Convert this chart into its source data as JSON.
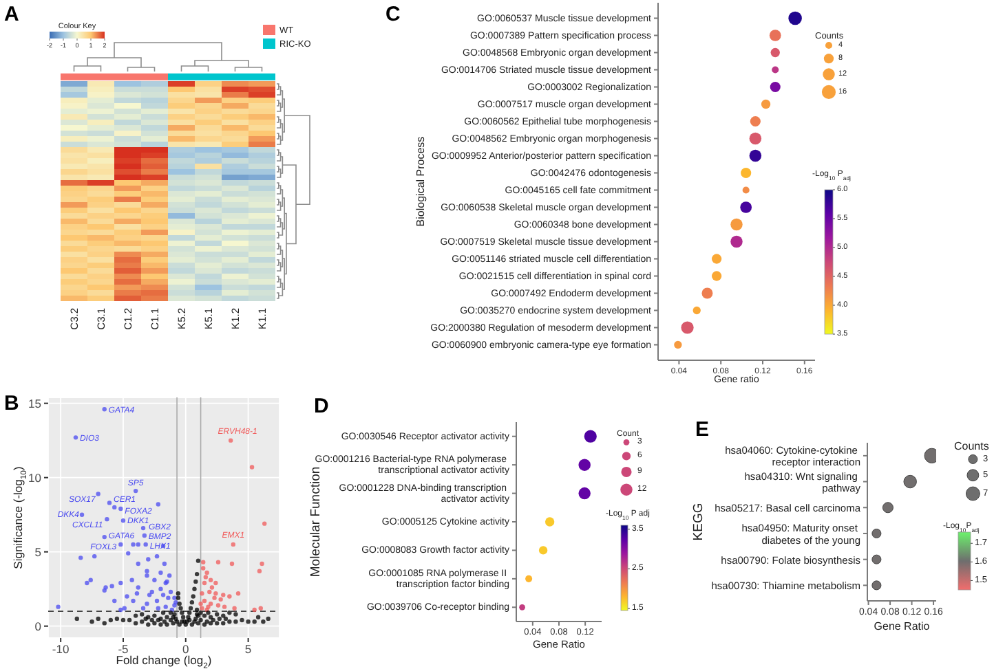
{
  "chart_data": [
    {
      "type": "heatmap",
      "title": "A",
      "categories": [
        "C3.2",
        "C3.1",
        "C1.2",
        "C1.1",
        "K5.2",
        "K5.1",
        "K1.2",
        "K1.1"
      ],
      "y_categories": [
        null,
        null,
        null,
        null,
        null,
        null,
        null,
        null,
        null,
        null,
        null,
        null,
        null,
        null,
        null,
        null,
        null,
        null,
        null,
        null,
        null,
        null,
        null,
        null,
        null,
        null,
        null,
        null,
        null,
        null,
        null,
        null,
        null,
        null,
        null,
        null,
        null,
        null,
        null,
        null
      ],
      "cells": [
        [
          -1.3,
          0.3,
          -1.0,
          -0.8,
          1.9,
          0.8,
          1.4,
          1.3
        ],
        [
          -0.6,
          0.2,
          -0.5,
          -0.5,
          1.0,
          0.5,
          1.9,
          1.8
        ],
        [
          -0.9,
          0.1,
          -0.3,
          -0.4,
          0.5,
          0.4,
          1.5,
          1.9
        ],
        [
          0.2,
          -0.2,
          -0.6,
          -0.7,
          0.7,
          1.3,
          0.8,
          0.9
        ],
        [
          0.1,
          -0.3,
          0.0,
          -0.6,
          0.9,
          0.7,
          1.2,
          0.6
        ],
        [
          -0.2,
          -0.1,
          -0.4,
          -0.2,
          0.4,
          0.8,
          0.6,
          0.7
        ],
        [
          0.3,
          -0.4,
          -0.2,
          -0.5,
          0.8,
          0.6,
          0.9,
          1.1
        ],
        [
          -0.3,
          0.2,
          -0.6,
          -0.3,
          0.5,
          0.9,
          0.5,
          0.8
        ],
        [
          0.0,
          -0.2,
          -0.3,
          -0.6,
          1.2,
          0.6,
          1.1,
          0.6
        ],
        [
          -0.4,
          -0.5,
          0.1,
          -0.4,
          0.6,
          0.5,
          0.7,
          1.0
        ],
        [
          0.2,
          -0.1,
          -0.5,
          -0.2,
          1.1,
          0.7,
          0.6,
          1.3
        ],
        [
          -0.5,
          -0.3,
          -0.4,
          -0.7,
          0.4,
          0.3,
          0.9,
          1.5
        ],
        [
          0.6,
          0.3,
          2.0,
          2.0,
          -0.8,
          -1.0,
          -0.9,
          -0.6
        ],
        [
          0.4,
          0.5,
          2.0,
          1.9,
          -0.9,
          -0.7,
          -1.1,
          -0.8
        ],
        [
          0.5,
          0.2,
          1.9,
          1.6,
          -0.6,
          -0.8,
          -0.5,
          -0.7
        ],
        [
          0.3,
          0.4,
          2.0,
          1.7,
          -0.7,
          0.5,
          -0.8,
          -0.5
        ],
        [
          0.7,
          0.5,
          1.8,
          1.5,
          -1.0,
          -0.6,
          -0.9,
          -0.9
        ],
        [
          0.4,
          0.3,
          2.0,
          1.9,
          -0.5,
          -0.4,
          -1.4,
          -1.3
        ],
        [
          1.6,
          1.9,
          1.0,
          1.2,
          -0.4,
          -0.3,
          -0.6,
          -0.5
        ],
        [
          0.9,
          0.7,
          1.3,
          0.8,
          -0.6,
          -0.5,
          -0.3,
          -0.7
        ],
        [
          0.8,
          0.6,
          0.9,
          1.1,
          -0.3,
          -0.2,
          -0.5,
          -0.4
        ],
        [
          0.7,
          0.9,
          1.5,
          0.9,
          -0.2,
          -0.5,
          -0.2,
          -0.3
        ],
        [
          1.3,
          0.8,
          0.6,
          1.2,
          -0.4,
          -0.6,
          -0.4,
          -0.2
        ],
        [
          0.9,
          0.5,
          1.0,
          0.7,
          -0.5,
          -0.3,
          -0.6,
          -0.5
        ],
        [
          0.6,
          0.8,
          0.7,
          0.9,
          -1.1,
          -0.4,
          -0.3,
          -0.1
        ],
        [
          1.1,
          0.6,
          1.2,
          1.0,
          -0.3,
          -0.7,
          -0.2,
          -0.3
        ],
        [
          0.8,
          1.0,
          0.5,
          0.8,
          -0.2,
          -0.3,
          -0.6,
          -0.6
        ],
        [
          0.7,
          0.6,
          0.9,
          1.3,
          0.1,
          -0.4,
          -0.1,
          -0.2
        ],
        [
          1.0,
          1.1,
          0.8,
          0.7,
          -0.6,
          -0.2,
          -0.4,
          -0.5
        ],
        [
          0.6,
          0.9,
          1.1,
          1.0,
          -0.1,
          -0.6,
          0.0,
          -0.3
        ],
        [
          0.9,
          0.7,
          0.6,
          0.8,
          -0.4,
          -0.1,
          -0.3,
          -0.4
        ],
        [
          0.5,
          0.8,
          1.4,
          1.2,
          -0.3,
          -0.5,
          -0.5,
          -0.2
        ],
        [
          0.8,
          0.5,
          1.6,
          0.9,
          -0.2,
          -0.4,
          -0.2,
          -0.6
        ],
        [
          0.7,
          0.9,
          1.5,
          1.1,
          -0.5,
          -0.2,
          -0.4,
          -0.3
        ],
        [
          1.0,
          0.6,
          1.7,
          1.3,
          -0.6,
          -0.3,
          -0.6,
          -0.5
        ],
        [
          0.6,
          0.8,
          1.4,
          1.0,
          -0.3,
          -0.6,
          -0.1,
          -0.4
        ],
        [
          0.9,
          0.7,
          1.6,
          1.2,
          -0.1,
          -0.5,
          -0.3,
          -0.2
        ],
        [
          0.7,
          1.0,
          1.3,
          1.4,
          -0.4,
          -1.0,
          -0.5,
          -0.6
        ],
        [
          0.8,
          0.6,
          1.5,
          1.6,
          -0.5,
          -0.7,
          -0.2,
          -0.4
        ],
        [
          1.1,
          0.9,
          1.7,
          1.5,
          -0.3,
          -0.4,
          -0.6,
          -0.5
        ]
      ],
      "clim": [
        -2,
        2
      ],
      "cticks": [
        -2,
        -1,
        0,
        1,
        2
      ],
      "clabel": "Colour Key",
      "annotations": [
        "WT",
        "RIC-KO"
      ]
    },
    {
      "type": "scatter",
      "title": "B",
      "xlabel": "Fold change (log$_{2}$)",
      "ylabel": "Significance (-log$_{10}$)",
      "xlim": [
        -11,
        7.5
      ],
      "ylim": [
        -0.8,
        15.4
      ],
      "xticks": [
        -10,
        -5,
        0,
        5
      ],
      "yticks": [
        0,
        5,
        10,
        15
      ],
      "grid": true,
      "marker": "circle",
      "series": [
        {
          "color": "#4a4af0",
          "x": [
            -6.5,
            -8.8,
            -4.0,
            -7.0,
            -6.1,
            -5.2,
            -8.3,
            -6.3,
            -5.0,
            -3.4,
            -6.5,
            -3.3,
            -5.2,
            -3.2,
            -5.7,
            -2.2,
            -10.2,
            -8.4,
            -7.3,
            -7.6,
            -7.9,
            -6.4,
            -5.9,
            -6.5,
            -4.6,
            -4.2,
            -3.8,
            -1.8,
            -2.3,
            -3.8,
            -3.1,
            -3.1,
            -4.3,
            -5.2,
            -3.8,
            -2.7,
            -2.0,
            -1.6,
            -1.2,
            -1.4,
            -2.3,
            -3.1,
            -4.2,
            -4.9,
            -5.2,
            -3.4,
            -2.2,
            -0.9,
            -1.8,
            -0.9,
            -2.9,
            -3.9,
            -4.7,
            -5.7,
            -3.0,
            -2.5,
            -1.7,
            -1.3,
            -0.8,
            -1.5,
            -2.0,
            -1.1,
            -1.6
          ],
          "values": [
            14.6,
            12.7,
            9.1,
            8.9,
            8.3,
            7.9,
            7.5,
            7.2,
            7.1,
            6.6,
            6.0,
            6.1,
            5.5,
            5.5,
            8.0,
            8.2,
            1.3,
            4.6,
            4.7,
            3.1,
            2.9,
            2.6,
            2.7,
            2.4,
            4.9,
            5.5,
            5.5,
            5.4,
            4.7,
            4.2,
            3.7,
            3.4,
            3.1,
            2.9,
            2.6,
            2.3,
            3.6,
            2.9,
            2.3,
            1.9,
            1.7,
            1.5,
            1.7,
            1.2,
            1.1,
            1.2,
            1.2,
            1.4,
            2.1,
            1.9,
            2.1,
            2.2,
            2.0,
            1.7,
            4.5,
            3.1,
            4.2,
            3.4,
            1.6,
            3.0,
            2.5,
            1.1,
            1.3
          ]
        },
        {
          "color": "#f05a5a",
          "x": [
            3.6,
            3.8,
            5.3,
            6.3,
            6.1,
            5.9,
            1.4,
            2.6,
            3.7,
            1.4,
            1.7,
            2.0,
            2.4,
            1.5,
            1.3,
            1.9,
            2.4,
            3.0,
            3.5,
            4.2,
            1.5,
            2.0,
            2.6,
            3.1,
            3.9,
            5.5,
            6.0,
            1.3,
            1.2,
            1.7,
            2.1,
            2.8,
            1.6,
            2.3,
            1.8
          ],
          "values": [
            12.5,
            5.5,
            10.7,
            6.9,
            4.2,
            3.7,
            4.3,
            4.3,
            4.2,
            3.9,
            3.6,
            3.1,
            2.9,
            2.9,
            2.2,
            2.3,
            2.2,
            2.1,
            2.0,
            2.2,
            1.7,
            1.5,
            1.4,
            1.3,
            1.2,
            1.1,
            1.2,
            1.2,
            1.5,
            1.1,
            2.6,
            1.8,
            3.3,
            1.9,
            1.3
          ]
        },
        {
          "color": "#000000",
          "x": [
            0,
            -0.1,
            0.1,
            -0.2,
            0.2,
            -0.3,
            0.3,
            -0.4,
            0.4,
            -0.5,
            0.5,
            -0.6,
            0.6,
            -0.6,
            0.7,
            0.8,
            0.9,
            1.0,
            0.9,
            -0.5,
            0.5,
            -1,
            1,
            -1.5,
            1.5,
            -2,
            2,
            -2.5,
            2.5,
            -3,
            3,
            -3.5,
            3.5,
            -4,
            4,
            -4.5,
            4.5,
            -5,
            5,
            -5.5,
            5.5,
            -6,
            6.2,
            6.6,
            -7,
            -8.7,
            -1,
            1,
            -1.5,
            1.5,
            -2,
            2,
            -2.5,
            2.5,
            -3,
            3,
            -3.5,
            3.5,
            -4,
            4,
            -1.2,
            1.2,
            -1.8,
            1.8,
            -0.8,
            0.8,
            -6.5,
            5.8,
            -7.5,
            -0.3,
            0.3,
            -0.7,
            0.7,
            -1.2,
            1.2,
            -1.7,
            1.7,
            -2.2,
            2.2,
            -2.7,
            2.7,
            -3.2,
            3.2,
            -0.9,
            0.9
          ],
          "values": [
            0.1,
            0.3,
            0.3,
            0.6,
            0.6,
            0.9,
            0.9,
            1.2,
            1.2,
            1.5,
            1.6,
            1.9,
            2.0,
            2.2,
            2.5,
            3.0,
            3.5,
            4.4,
            1.1,
            0.1,
            0.1,
            0.2,
            0.2,
            0.1,
            0.1,
            0.1,
            0.2,
            0.2,
            0.2,
            0.1,
            0.2,
            0.3,
            0.3,
            0.2,
            0.3,
            0.4,
            0.4,
            0.4,
            0.3,
            0.5,
            0.3,
            0.4,
            0.3,
            0.5,
            0.5,
            0.5,
            0.6,
            0.7,
            0.6,
            0.7,
            0.5,
            0.6,
            0.7,
            0.8,
            0.6,
            0.7,
            0.8,
            0.9,
            0.7,
            0.8,
            0.9,
            0.9,
            0.9,
            0.9,
            0.5,
            0.5,
            0.2,
            0.6,
            0.3,
            0.3,
            0.4,
            0.3,
            0.3,
            0.4,
            0.4,
            0.3,
            0.3,
            0.4,
            0.4,
            0.4,
            0.5,
            0.5,
            0.5,
            0.8,
            0.8
          ]
        }
      ],
      "ref_lines": [
        {
          "axis": "x",
          "value": -0.7,
          "color": "#aaaaaa"
        },
        {
          "axis": "x",
          "value": 1.2,
          "color": "#aaaaaa"
        },
        {
          "axis": "y",
          "value": 1,
          "color": "#444444",
          "line_style": "dashed"
        }
      ],
      "annotations": [
        {
          "text": "GATA4",
          "x": -6.5,
          "y": 14.6
        },
        {
          "text": "DIO3",
          "x": -8.8,
          "y": 12.7
        },
        {
          "text": "SP5",
          "x": -4.0,
          "y": 9.1
        },
        {
          "text": "SOX17",
          "x": -7.0,
          "y": 8.9
        },
        {
          "text": "CER1",
          "x": -6.1,
          "y": 8.3
        },
        {
          "text": "FOXA2",
          "x": -5.2,
          "y": 7.9
        },
        {
          "text": "DKK4",
          "x": -8.3,
          "y": 7.5
        },
        {
          "text": "CXCL11",
          "x": -6.3,
          "y": 7.2
        },
        {
          "text": "DKK1",
          "x": -5.0,
          "y": 7.1
        },
        {
          "text": "GBX2",
          "x": -3.4,
          "y": 6.6
        },
        {
          "text": "GATA6",
          "x": -6.5,
          "y": 6.0
        },
        {
          "text": "BMP2",
          "x": -3.3,
          "y": 6.1
        },
        {
          "text": "FOXL3",
          "x": -5.2,
          "y": 5.5
        },
        {
          "text": "LHX1",
          "x": -3.2,
          "y": 5.5
        },
        {
          "text": "ERVH48-1",
          "x": 3.6,
          "y": 12.5
        },
        {
          "text": "EMX1",
          "x": 3.8,
          "y": 5.5
        }
      ]
    },
    {
      "type": "bubble",
      "title": "C",
      "orientation": "horizontal",
      "categories": [
        "GO:0060537 Muscle tissue development",
        "GO:0007389 Pattern specification process",
        "GO:0048568 Embryonic organ development",
        "GO:0014706 Striated muscle tissue development",
        "GO:0003002 Regionalization",
        "GO:0007517 muscle organ development",
        "GO:0060562 Epithelial tube morphogenesis",
        "GO:0048562 Embryonic organ morphogenesis",
        "GO:0009952 Anterior/posterior pattern specification",
        "GO:0042476 odontogenesis",
        "GO:0045165 cell fate commitment",
        "GO:0060538 Skeletal muscle organ development",
        "GO:0060348 bone development",
        "GO:0007519 Skeletal muscle tissue development",
        "GO:0051146 striated muscle cell differentiation",
        "GO:0021515 cell differentiation in spinal cord",
        "GO:0007492 Endoderm development",
        "GO:0035270 endocrine system development",
        "GO:2000380 Regulation of mesoderm development",
        "GO:0060900 embryonic camera-type eye formation"
      ],
      "series": [
        {
          "values": [
            0.151,
            0.132,
            0.132,
            0.132,
            0.132,
            0.123,
            0.113,
            0.113,
            0.113,
            0.104,
            0.104,
            0.104,
            0.095,
            0.095,
            0.076,
            0.076,
            0.067,
            0.057,
            0.048,
            0.039
          ],
          "sizes": [
            15,
            11,
            7,
            4,
            9,
            7,
            9,
            12,
            12,
            9,
            4,
            11,
            12,
            12,
            8,
            8,
            10,
            5,
            13,
            5
          ],
          "cvalues": [
            5.9,
            4.4,
            4.6,
            4.9,
            5.4,
            4.1,
            4.3,
            4.6,
            5.8,
            3.9,
            4.2,
            5.7,
            4.1,
            5.0,
            4.0,
            4.0,
            4.3,
            4.0,
            4.6,
            4.1
          ]
        }
      ],
      "xlim": [
        0.02,
        0.17
      ],
      "xticks": [
        0.04,
        0.08,
        0.12,
        0.16
      ],
      "size_legend": [
        4,
        8,
        12,
        16
      ],
      "legend_title": "Counts",
      "clim": [
        3.5,
        6.0
      ],
      "cticks": [
        3.5,
        {
          "value": 4,
          "label": "4.0"
        },
        4.5,
        {
          "value": 5,
          "label": "5.0"
        },
        5.5,
        {
          "value": 6,
          "label": "6.0"
        }
      ],
      "clabel": "-Log$_{10}$ P$_{adj}$",
      "xlabel": "Gene ratio",
      "ylabel": "Biological Process"
    },
    {
      "type": "bubble",
      "title": "D",
      "orientation": "horizontal",
      "categories": [
        "GO:0030546 Receptor activator activity",
        "GO:0001216 Bacterial-type RNA polymerase transcriptional activator activity",
        "GO:0001228 DNA-binding transcription activator activity",
        "GO:0005125 Cytokine activity",
        "GO:0008083 Growth factor activity",
        "GO:0001085 RNA polymerase II transcription factor binding",
        "GO:0039706 Co-receptor binding"
      ],
      "series": [
        {
          "values": [
            0.128,
            0.119,
            0.119,
            0.066,
            0.056,
            0.034,
            0.024
          ],
          "sizes": [
            13,
            12,
            12,
            7,
            6,
            4,
            3
          ],
          "cvalues": [
            3.3,
            3.2,
            3.2,
            1.7,
            1.7,
            1.8,
            2.6
          ]
        }
      ],
      "xlim": [
        0.015,
        0.145
      ],
      "xticks": [
        0.04,
        0.08,
        0.12
      ],
      "size_legend": [
        3,
        6,
        9,
        12
      ],
      "legend_title": "Count",
      "clim": [
        1.45,
        3.6
      ],
      "cticks": [
        1.5,
        2.5,
        3.5
      ],
      "clabel": "-Log$_{10}$ P adj",
      "xlabel": "Gene Ratio",
      "ylabel": "Molecular Function"
    },
    {
      "type": "bubble",
      "title": "E",
      "orientation": "horizontal",
      "categories": [
        "hsa04060: Cytokine-cytokine receptor interaction",
        "hsa04310: Wnt signaling pathway",
        "hsa05217: Basal cell carcinoma",
        "hsa04950: Maturity onset diabetes of the young",
        "hsa00790: Folate biosynthesis",
        "hsa00730: Thiamine metabolism"
      ],
      "series": [
        {
          "values": [
            0.157,
            0.117,
            0.076,
            0.055,
            0.055,
            0.055
          ],
          "sizes": [
            8,
            6,
            4,
            3,
            3,
            3
          ],
          "cvalues": [
            1.6,
            1.6,
            1.6,
            1.6,
            1.6,
            1.6
          ]
        }
      ],
      "xlim": [
        0.038,
        0.165
      ],
      "xticks": [
        0.04,
        0.08,
        0.12,
        0.16
      ],
      "size_legend": [
        3,
        5,
        7
      ],
      "legend_title": "Counts",
      "clim": [
        1.45,
        1.76
      ],
      "cticks": [
        1.5,
        1.6,
        1.7
      ],
      "clabel": "-Log$_{10}$P$_{adj}$",
      "xlabel": "Gene Ratio",
      "ylabel": "KEGG"
    }
  ]
}
